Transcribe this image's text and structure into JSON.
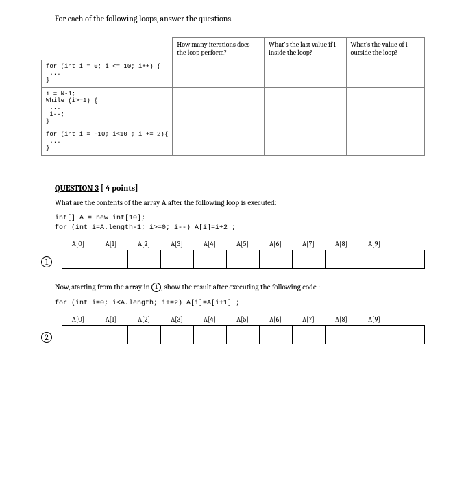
{
  "intro": "For each of the following loops, answer the questions.",
  "table": {
    "headers": [
      "How many iterations does the loop perform?",
      "What's the last value if i inside the loop?",
      "What's the value of i outside the loop?"
    ],
    "rows": [
      "for (int i = 0; i <= 10; i++) {\n ...\n}",
      "i = N-1;\nWhile (i>=1) {\n ...\n i--;\n}",
      "for (int i = -10; i<10 ; i += 2){\n ...\n}"
    ]
  },
  "q3": {
    "title_prefix": "QUESTION 3",
    "title_suffix": " [ 4 points]",
    "prompt": "What are the contents of the array A after the following loop is executed:",
    "code1": "int[] A = new int[10];\nfor (int i=A.length-1; i>=0; i--) A[i]=i+2 ;",
    "labels": [
      "A[0]",
      "A[1]",
      "A[2]",
      "A[3]",
      "A[4]",
      "A[5]",
      "A[6]",
      "A[7]",
      "A[8]",
      "A[9]"
    ],
    "circle1": "1",
    "prompt2_a": "Now, starting from the array in ",
    "prompt2_b": ", show the result after executing the following code :",
    "code2": "for (int i=0; i<A.length; i+=2) A[i]=A[i+1] ;",
    "circle2": "2"
  }
}
